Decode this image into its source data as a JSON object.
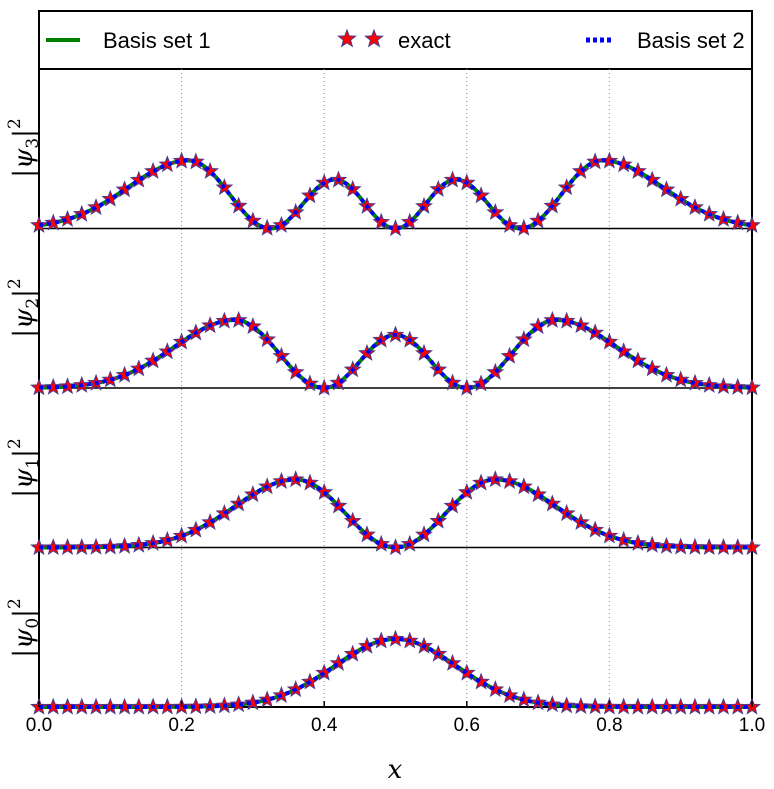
{
  "chart_data": {
    "type": "line",
    "title": "",
    "xlabel": "x",
    "xlim": [
      0.0,
      1.0
    ],
    "xticks": [
      "0.0",
      "0.2",
      "0.4",
      "0.6",
      "0.8",
      "1.0"
    ],
    "grid": "vertical dotted at 0.2, 0.4, 0.6, 0.8",
    "legend": {
      "placement": "top",
      "entries": [
        {
          "label": "Basis set 1",
          "style": "solid",
          "color": "#008000"
        },
        {
          "label": "exact",
          "style": "star markers",
          "color": "#ff0000"
        },
        {
          "label": "Basis set 2",
          "style": "dotted",
          "color": "#0000ff"
        }
      ]
    },
    "panels": [
      {
        "ylabel": "|ψ3|²",
        "ylabel_letter": "ψ",
        "ylabel_sub": "3",
        "ylabel_sup": "2",
        "ylabel_bar": "|",
        "peaks": [
          {
            "x": 0.21,
            "y": 1.0
          },
          {
            "x": 0.415,
            "y": 0.72
          },
          {
            "x": 0.585,
            "y": 0.72
          },
          {
            "x": 0.79,
            "y": 1.0
          }
        ],
        "zeros": [
          0.325,
          0.5,
          0.675
        ]
      },
      {
        "ylabel": "|ψ2|²",
        "ylabel_letter": "ψ",
        "ylabel_sub": "2",
        "ylabel_sup": "2",
        "ylabel_bar": "|",
        "peaks": [
          {
            "x": 0.275,
            "y": 1.0
          },
          {
            "x": 0.5,
            "y": 0.78
          },
          {
            "x": 0.725,
            "y": 1.0
          }
        ],
        "zeros": [
          0.4,
          0.6
        ]
      },
      {
        "ylabel": "|ψ1|²",
        "ylabel_letter": "ψ",
        "ylabel_sub": "1",
        "ylabel_sup": "2",
        "ylabel_bar": "|",
        "peaks": [
          {
            "x": 0.36,
            "y": 1.0
          },
          {
            "x": 0.64,
            "y": 1.0
          }
        ],
        "zeros": [
          0.5
        ]
      },
      {
        "ylabel": "|ψ0|²",
        "ylabel_letter": "ψ",
        "ylabel_sub": "0",
        "ylabel_sup": "2",
        "ylabel_bar": "|",
        "peaks": [
          {
            "x": 0.5,
            "y": 1.0
          }
        ],
        "zeros": []
      }
    ],
    "series": [
      {
        "name": "Basis set 1",
        "color": "#008000"
      },
      {
        "name": "exact",
        "color": "#ff0000",
        "edge_color": "#4b3b8c"
      },
      {
        "name": "Basis set 2",
        "color": "#0000ff"
      }
    ],
    "marker_count_per_panel": 51
  }
}
